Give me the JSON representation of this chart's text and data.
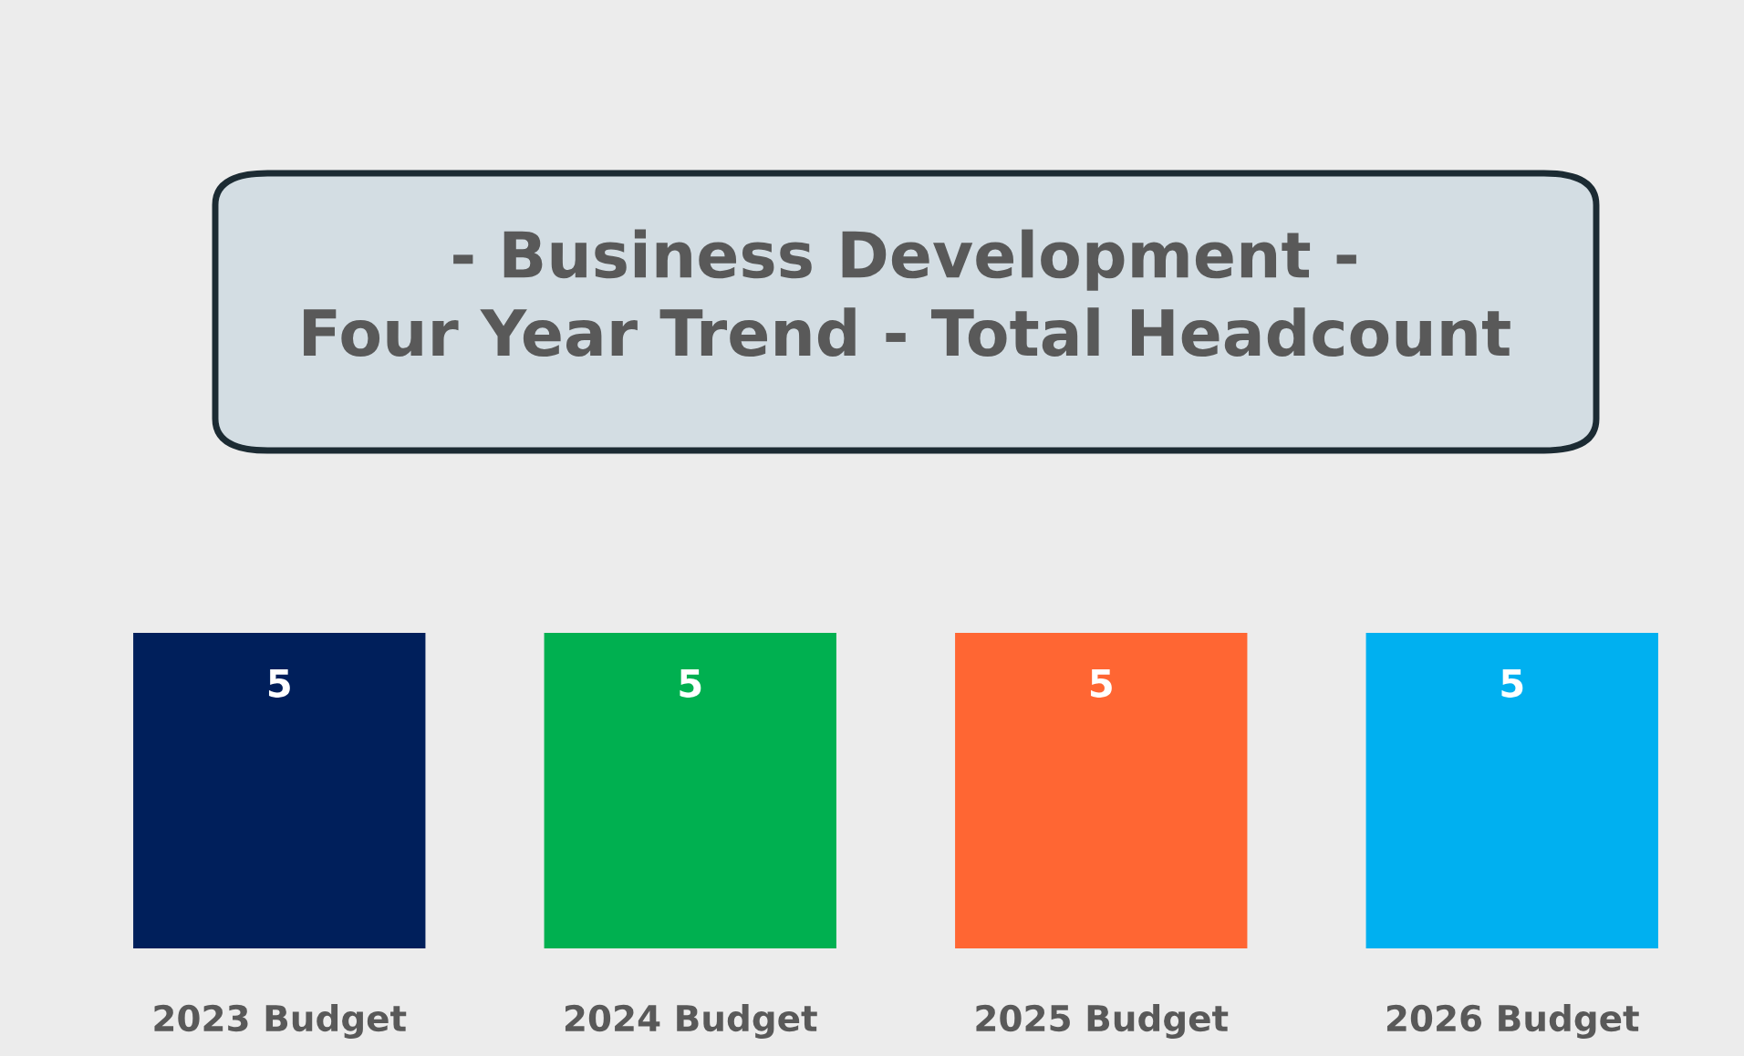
{
  "chart_data": {
    "type": "bar",
    "title": "- Business Development -\nFour Year Trend - Total Headcount",
    "categories": [
      "2023 Budget",
      "2024 Budget",
      "2025 Budget",
      "2026 Budget"
    ],
    "values": [
      5,
      5,
      5,
      5
    ],
    "colors": [
      "#001f5b",
      "#00b050",
      "#ff6633",
      "#00b0f0"
    ],
    "data_labels": true,
    "tick_labels": "x",
    "grid": false,
    "legend": false
  }
}
